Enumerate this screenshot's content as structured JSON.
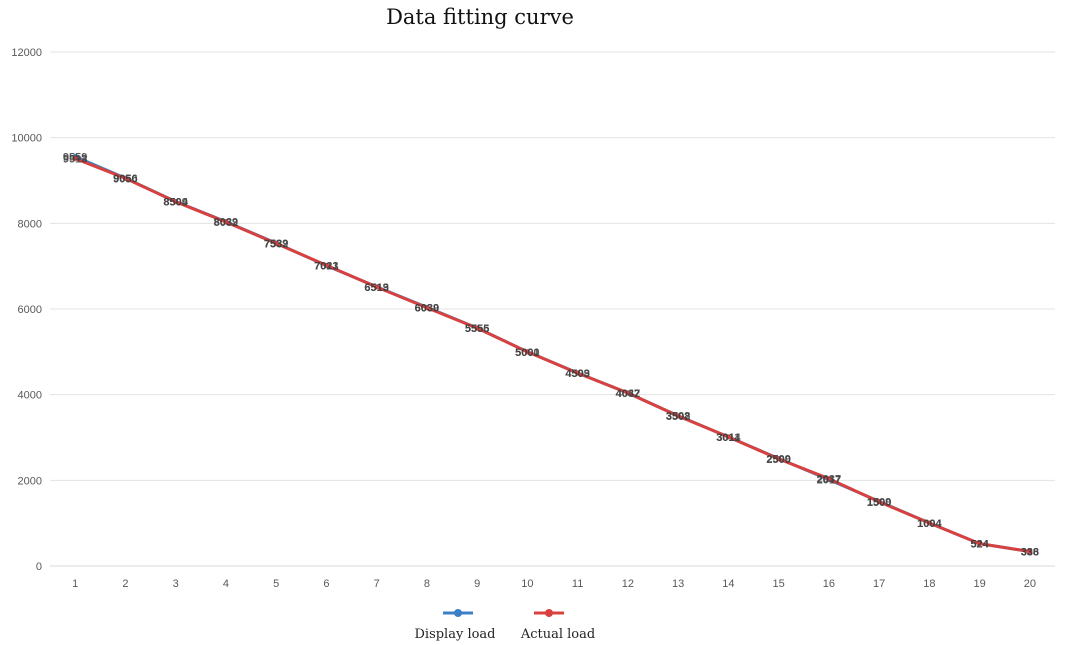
{
  "chart_data": {
    "type": "line",
    "title": "Data fitting curve",
    "xlabel": "",
    "ylabel": "",
    "categories": [
      "1",
      "2",
      "3",
      "4",
      "5",
      "6",
      "7",
      "8",
      "9",
      "10",
      "11",
      "12",
      "13",
      "14",
      "15",
      "16",
      "17",
      "18",
      "19",
      "20"
    ],
    "ylim": [
      0,
      12000
    ],
    "yticks": [
      "0",
      "2000",
      "4000",
      "6000",
      "8000",
      "10000",
      "12000"
    ],
    "grid": true,
    "legend_position": "bottom",
    "series": [
      {
        "name": "Display load",
        "color": "#3b7fc4",
        "values": [
          9559,
          9056,
          8509,
          8039,
          7539,
          7013,
          6519,
          6039,
          5556,
          5001,
          4509,
          4037,
          3508,
          3011,
          2509,
          2017,
          1509,
          1004,
          524,
          336
        ]
      },
      {
        "name": "Actual load",
        "color": "#d9413f",
        "values": [
          9513,
          9050,
          8504,
          8032,
          7532,
          7021,
          6513,
          6030,
          5555,
          5000,
          4503,
          4042,
          3502,
          3014,
          2500,
          2037,
          1500,
          1004,
          524,
          338
        ]
      }
    ]
  }
}
